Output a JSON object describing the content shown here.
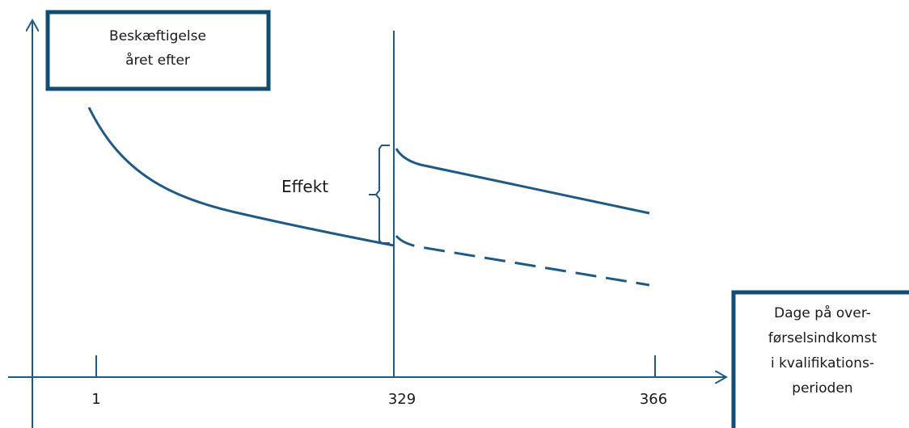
{
  "colors": {
    "line": "#1f5a86",
    "box": "#0f4c72",
    "text": "#1a1a1a"
  },
  "y_axis_box": {
    "lines": [
      "Beskæftigelse",
      "året efter"
    ]
  },
  "x_axis_box": {
    "lines": [
      "Dage på over-",
      "førselsindkomst",
      "i kvalifikations-",
      "perioden"
    ]
  },
  "effect_label": "Effekt",
  "x_ticks": [
    "1",
    "329",
    "366"
  ]
}
